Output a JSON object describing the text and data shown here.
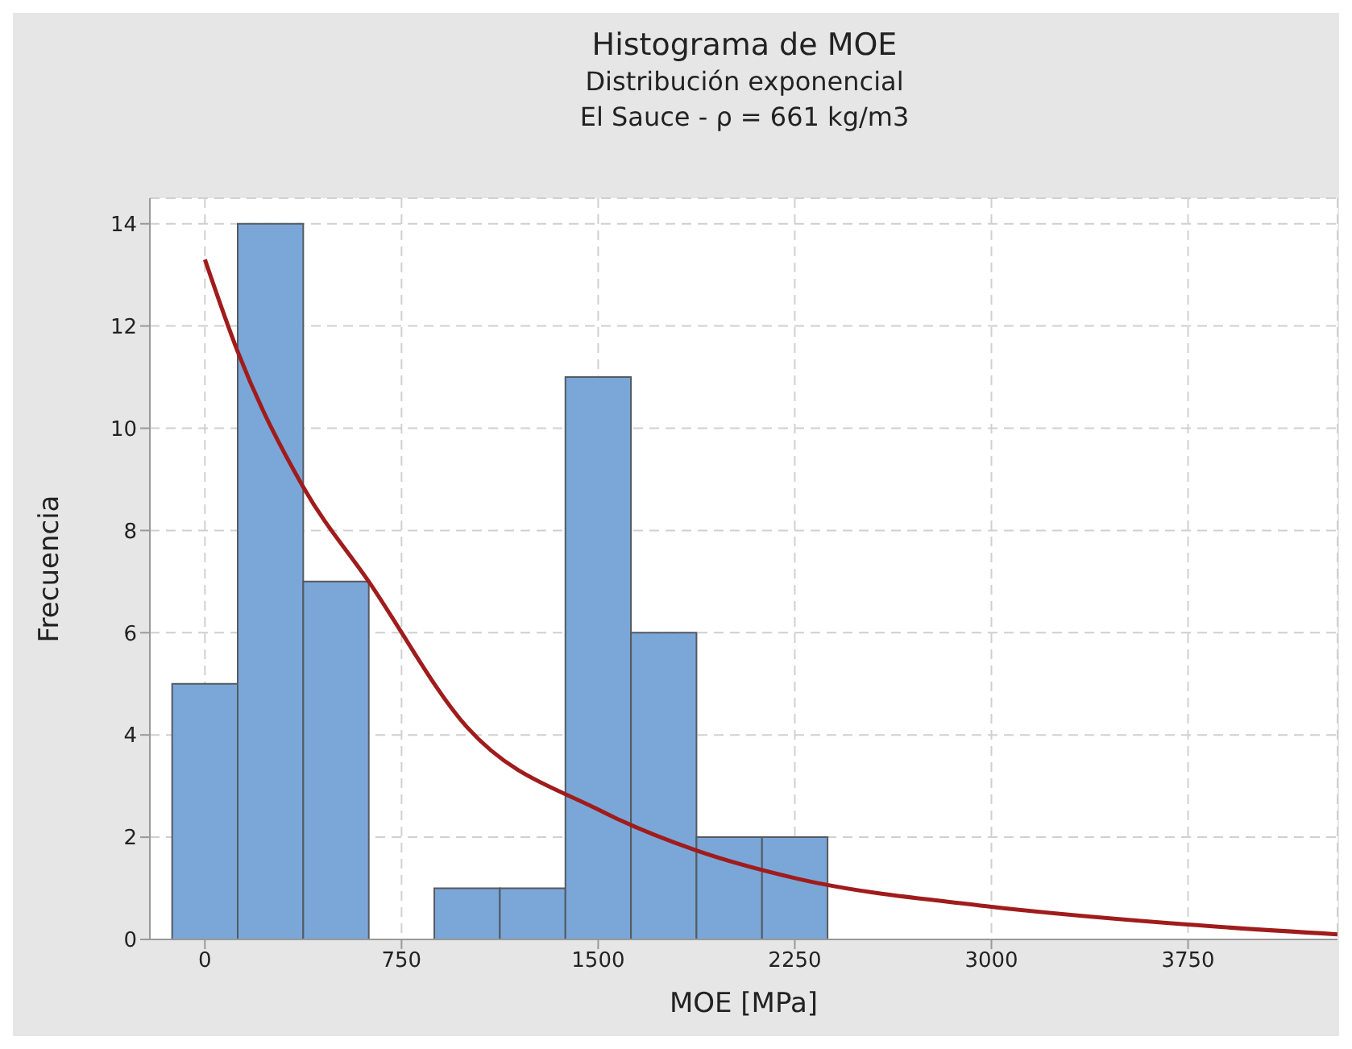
{
  "chart_data": {
    "type": "histogram",
    "title": "Histograma de MOE",
    "subtitle": "Distribución exponencial\nEl Sauce - ρ = 661 kg/m3",
    "xlabel": "MOE [MPa]",
    "ylabel": "Frecuencia",
    "bins": [
      -125,
      125,
      375,
      625,
      875,
      1125,
      1375,
      1625,
      1875,
      2125,
      2375
    ],
    "values": [
      5,
      14,
      7,
      0,
      1,
      1,
      11,
      6,
      2,
      2
    ],
    "color": "#7ba7d8",
    "series": [
      {
        "type": "line",
        "color": "#a01c1c",
        "x": [
          0,
          125,
          375,
          625,
          1000,
          1500,
          1875,
          2250,
          3000,
          3750,
          4320
        ],
        "values": [
          13.3,
          11.5,
          8.85,
          7.0,
          4.15,
          2.54,
          1.74,
          1.2,
          0.64,
          0.29,
          0.1
        ]
      }
    ],
    "xlim": [
      -210,
      4320
    ],
    "xticks": [
      0,
      750,
      1500,
      2250,
      3000,
      3750
    ],
    "ylim": [
      0,
      14.5
    ],
    "yticks": [
      0,
      2,
      4,
      6,
      8,
      10,
      12,
      14
    ],
    "grid": true,
    "legend": false
  }
}
